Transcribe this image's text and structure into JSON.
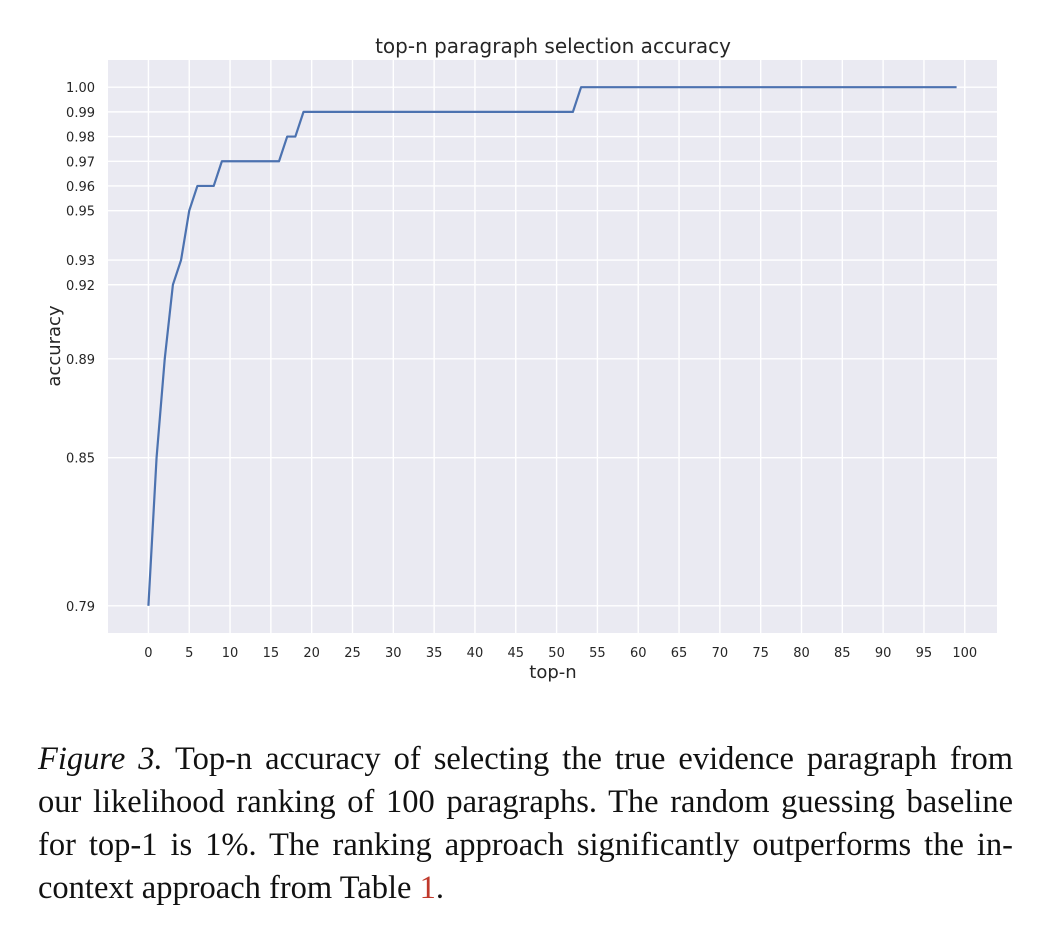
{
  "chart_data": {
    "type": "line",
    "title": "top-n paragraph selection accuracy",
    "xlabel": "top-n",
    "ylabel": "accuracy",
    "xlim": [
      -4.95,
      103.95
    ],
    "ylim": [
      0.779,
      1.011
    ],
    "x_ticks": [
      0,
      5,
      10,
      15,
      20,
      25,
      30,
      35,
      40,
      45,
      50,
      55,
      60,
      65,
      70,
      75,
      80,
      85,
      90,
      95,
      100
    ],
    "x_tick_labels": [
      "0",
      "5",
      "10",
      "15",
      "20",
      "25",
      "30",
      "35",
      "40",
      "45",
      "50",
      "55",
      "60",
      "65",
      "70",
      "75",
      "80",
      "85",
      "90",
      "95",
      "100"
    ],
    "y_ticks": [
      0.79,
      0.85,
      0.89,
      0.92,
      0.93,
      0.95,
      0.96,
      0.97,
      0.98,
      0.99,
      1.0
    ],
    "y_tick_labels": [
      "0.79",
      "0.85",
      "0.89",
      "0.92",
      "0.93",
      "0.95",
      "0.96",
      "0.97",
      "0.98",
      "0.99",
      "1.00"
    ],
    "grid": true,
    "colors": {
      "line": "#4c72b0",
      "plot_bg": "#eaeaf2",
      "grid": "#ffffff"
    },
    "series": [
      {
        "points": [
          [
            0,
            0.79
          ],
          [
            1,
            0.85
          ],
          [
            2,
            0.89
          ],
          [
            3,
            0.92
          ],
          [
            4,
            0.93
          ],
          [
            5,
            0.95
          ],
          [
            6,
            0.96
          ],
          [
            8,
            0.96
          ],
          [
            9,
            0.97
          ],
          [
            16,
            0.97
          ],
          [
            17,
            0.98
          ],
          [
            18,
            0.98
          ],
          [
            19,
            0.99
          ],
          [
            52,
            0.99
          ],
          [
            53,
            1.0
          ],
          [
            99,
            1.0
          ]
        ]
      }
    ]
  },
  "caption": {
    "label": "Figure 3.",
    "text_before_ref": " Top-n accuracy of selecting the true evidence paragraph from our likelihood ranking of 100 paragraphs. The random guessing baseline for top-1 is 1%. The ranking approach significantly outperforms the in-context approach from Table ",
    "ref": "1",
    "text_after_ref": "."
  }
}
